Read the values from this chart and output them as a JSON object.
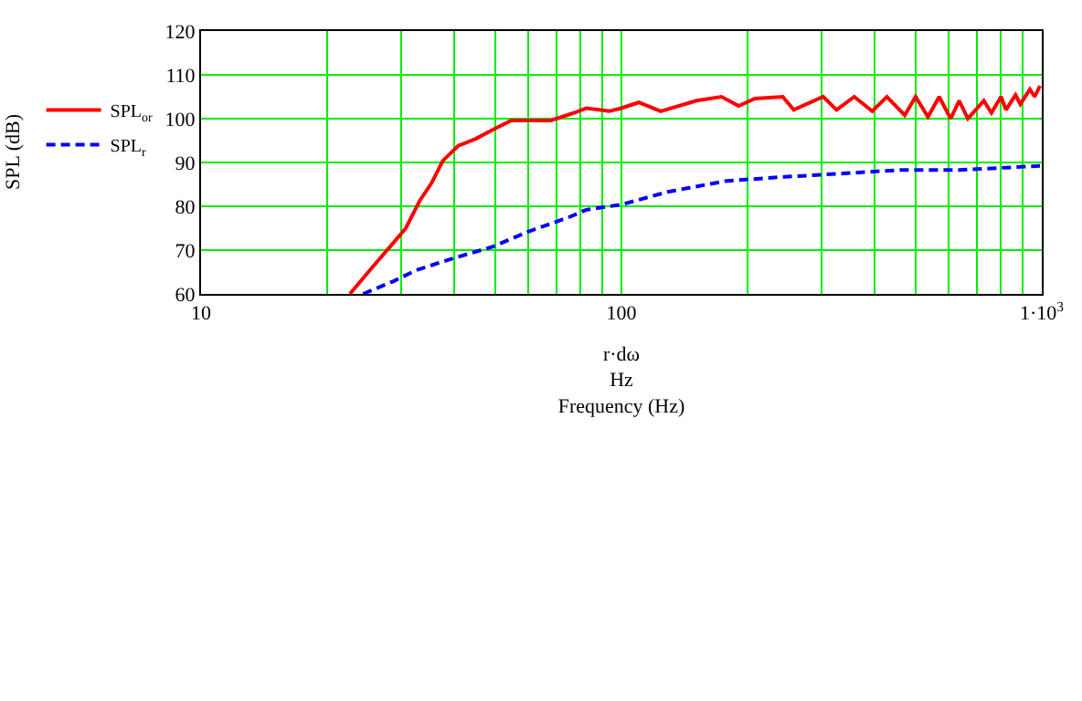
{
  "chart_data": {
    "type": "line",
    "annotations": [
      "SPL (dB)"
    ],
    "xlabel": "r·dω\nHz\nFrequency (Hz)",
    "xlim": [
      10,
      1000
    ],
    "ylim": [
      60,
      120
    ],
    "log": "x",
    "grid": true,
    "legend": "left",
    "xticks": [
      10,
      {
        "value": 20,
        "label": null
      },
      {
        "value": 30,
        "label": null
      },
      {
        "value": 40,
        "label": null
      },
      {
        "value": 50,
        "label": null
      },
      {
        "value": 60,
        "label": null
      },
      {
        "value": 70,
        "label": null
      },
      {
        "value": 80,
        "label": null
      },
      {
        "value": 90,
        "label": null
      },
      100,
      {
        "value": 200,
        "label": null
      },
      {
        "value": 300,
        "label": null
      },
      {
        "value": 400,
        "label": null
      },
      {
        "value": 500,
        "label": null
      },
      {
        "value": 600,
        "label": null
      },
      {
        "value": 700,
        "label": null
      },
      {
        "value": 800,
        "label": null
      },
      {
        "value": 900,
        "label": null
      },
      {
        "value": 1000,
        "label": "1·10$^{3}$"
      }
    ],
    "yticks": [
      60,
      70,
      80,
      90,
      100,
      110,
      120
    ],
    "series": [
      {
        "name": "SPL$_{or}$",
        "color": "#ff0000",
        "line_style": "solid",
        "x": [
          22.6,
          25.4,
          28.7,
          30.7,
          33.1,
          35.4,
          37.6,
          40.9,
          45,
          49.5,
          54.7,
          60,
          68,
          77,
          82.5,
          93.6,
          100,
          110,
          124,
          151,
          173,
          190,
          208,
          242,
          257,
          302,
          325,
          358,
          395,
          428,
          472,
          501,
          536,
          570,
          607,
          636,
          667,
          728,
          759,
          800,
          822,
          866,
          889,
          937,
          962,
          990
        ],
        "values": [
          60,
          65.8,
          71.7,
          75,
          81.2,
          85.4,
          90.4,
          93.8,
          95.4,
          97.5,
          99.6,
          99.6,
          99.6,
          101.3,
          102.4,
          101.7,
          102.4,
          103.7,
          101.7,
          104.1,
          105,
          102.9,
          104.6,
          105,
          102,
          105,
          102,
          105,
          101.7,
          105,
          100.8,
          105,
          100.4,
          105,
          100,
          104.1,
          100,
          104.1,
          101.3,
          105,
          102,
          105.4,
          103.3,
          106.7,
          105,
          107.5
        ]
      },
      {
        "name": "SPL$_{r}$",
        "color": "#0000ff",
        "line_style": "dashed",
        "x": [
          24.3,
          28.7,
          32.5,
          39.4,
          49.5,
          60,
          75,
          82.5,
          100,
          129,
          178,
          244,
          337,
          464,
          636,
          990
        ],
        "values": [
          60,
          62.9,
          65.4,
          68,
          70.8,
          74.2,
          77.5,
          79.2,
          80.4,
          83.3,
          85.8,
          86.7,
          87.5,
          88.3,
          88.3,
          89.2
        ]
      }
    ]
  }
}
